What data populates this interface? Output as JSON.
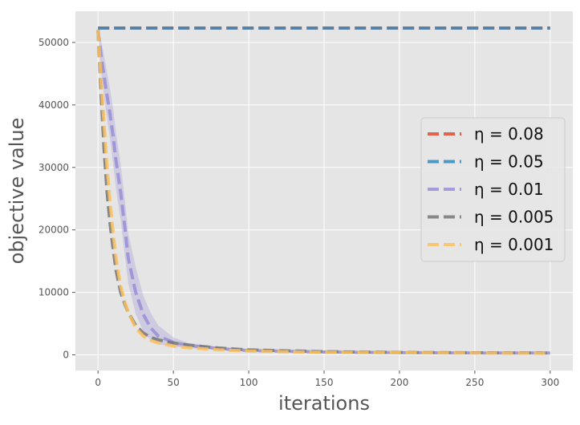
{
  "chart_data": {
    "type": "line",
    "xlabel": "iterations",
    "ylabel": "objective value",
    "xlim": [
      -15,
      315
    ],
    "ylim": [
      -2500,
      55000
    ],
    "xticks": [
      0,
      50,
      100,
      150,
      200,
      250,
      300
    ],
    "yticks": [
      0,
      10000,
      20000,
      30000,
      40000,
      50000
    ],
    "grid": true,
    "legend_position": "center-right",
    "series": [
      {
        "name": "η = 0.08",
        "color": "#E24A33",
        "x": [
          0,
          300
        ],
        "y": [
          52300,
          52300
        ]
      },
      {
        "name": "η = 0.05",
        "color": "#348ABD",
        "x": [
          0,
          300
        ],
        "y": [
          52300,
          52300
        ]
      },
      {
        "name": "η = 0.01",
        "color": "#988ED5",
        "x": [
          0,
          2,
          5,
          8,
          10,
          12,
          15,
          18,
          20,
          25,
          30,
          35,
          40,
          50,
          60,
          80,
          100,
          150,
          200,
          250,
          300
        ],
        "y": [
          52000,
          48000,
          43000,
          38500,
          35000,
          31000,
          26000,
          20000,
          15500,
          10000,
          6500,
          4300,
          3000,
          2000,
          1500,
          1000,
          700,
          450,
          350,
          300,
          280
        ],
        "band_upper": [
          52000,
          50500,
          46500,
          42500,
          39500,
          35500,
          30500,
          24500,
          19500,
          14000,
          9500,
          6700,
          4700,
          2800,
          1900,
          1250,
          850,
          520,
          400,
          340,
          310
        ],
        "band_lower": [
          52000,
          45500,
          39500,
          34500,
          30500,
          26500,
          21500,
          15500,
          11500,
          6500,
          3800,
          2300,
          1700,
          1300,
          1100,
          800,
          580,
          380,
          300,
          260,
          250
        ]
      },
      {
        "name": "η = 0.005",
        "color": "#777777",
        "x": [
          0,
          2,
          4,
          6,
          8,
          10,
          12,
          15,
          18,
          20,
          25,
          30,
          35,
          40,
          50,
          60,
          80,
          100,
          150,
          200,
          250,
          300
        ],
        "y": [
          52000,
          42000,
          33000,
          26000,
          21000,
          17000,
          13500,
          10000,
          8000,
          6800,
          4700,
          3500,
          2800,
          2400,
          1900,
          1550,
          1100,
          800,
          500,
          380,
          330,
          300
        ]
      },
      {
        "name": "η = 0.001",
        "color": "#FBC15E",
        "x": [
          0,
          2,
          4,
          6,
          8,
          10,
          12,
          15,
          18,
          20,
          25,
          30,
          35,
          40,
          50,
          60,
          80,
          100,
          150,
          200,
          250,
          300
        ],
        "y": [
          52000,
          44000,
          37000,
          30000,
          24500,
          19500,
          15500,
          11000,
          8300,
          6800,
          4300,
          3000,
          2300,
          1900,
          1400,
          1150,
          800,
          600,
          400,
          320,
          280,
          250
        ]
      }
    ]
  }
}
